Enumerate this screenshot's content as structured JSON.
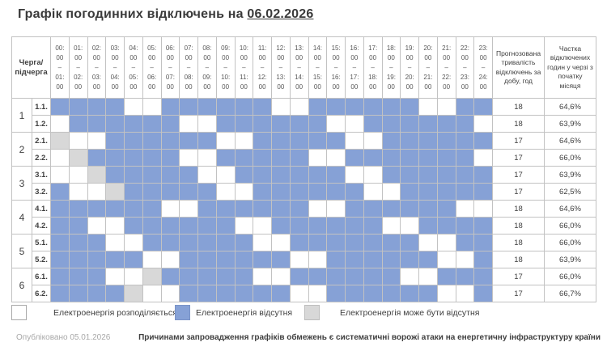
{
  "title": {
    "prefix": "Графік погодинних відключень на ",
    "date": "06.02.2026"
  },
  "colors": {
    "distributed": "#ffffff",
    "absent": "#86a1d6",
    "maybe_absent": "#d8d8d8"
  },
  "table": {
    "corner_label": "Черга/\nпідчерга",
    "predicted_header": "Прогнозована тривалість відключень за добу, год",
    "share_header": "Частка відключених годин у черзі з початку місяця",
    "hours": [
      {
        "f": "00:00",
        "t": "01:00"
      },
      {
        "f": "01:00",
        "t": "02:00"
      },
      {
        "f": "02:00",
        "t": "03:00"
      },
      {
        "f": "03:00",
        "t": "04:00"
      },
      {
        "f": "04:00",
        "t": "05:00"
      },
      {
        "f": "05:00",
        "t": "06:00"
      },
      {
        "f": "06:00",
        "t": "07:00"
      },
      {
        "f": "07:00",
        "t": "08:00"
      },
      {
        "f": "08:00",
        "t": "09:00"
      },
      {
        "f": "09:00",
        "t": "10:00"
      },
      {
        "f": "10:00",
        "t": "11:00"
      },
      {
        "f": "11:00",
        "t": "12:00"
      },
      {
        "f": "12:00",
        "t": "13:00"
      },
      {
        "f": "13:00",
        "t": "14:00"
      },
      {
        "f": "14:00",
        "t": "15:00"
      },
      {
        "f": "15:00",
        "t": "16:00"
      },
      {
        "f": "16:00",
        "t": "17:00"
      },
      {
        "f": "17:00",
        "t": "18:00"
      },
      {
        "f": "18:00",
        "t": "19:00"
      },
      {
        "f": "19:00",
        "t": "20:00"
      },
      {
        "f": "20:00",
        "t": "21:00"
      },
      {
        "f": "21:00",
        "t": "22:00"
      },
      {
        "f": "22:00",
        "t": "23:00"
      },
      {
        "f": "23:00",
        "t": "24:00"
      }
    ],
    "state_legend": {
      "0": "електроенергія розподіляється",
      "1": "електроенергія відсутня",
      "2": "електроенергія може бути відсутня"
    },
    "groups": [
      {
        "queue": "1",
        "rows": [
          {
            "label": "1.1.",
            "cells": [
              1,
              1,
              1,
              1,
              0,
              0,
              1,
              1,
              1,
              1,
              1,
              1,
              0,
              0,
              1,
              1,
              1,
              1,
              1,
              1,
              0,
              0,
              1,
              1
            ],
            "predicted": "18",
            "share": "64,6%"
          },
          {
            "label": "1.2.",
            "cells": [
              0,
              1,
              1,
              1,
              1,
              1,
              1,
              0,
              0,
              1,
              1,
              1,
              1,
              1,
              1,
              0,
              0,
              1,
              1,
              1,
              1,
              1,
              1,
              0
            ],
            "predicted": "18",
            "share": "63,9%"
          }
        ]
      },
      {
        "queue": "2",
        "rows": [
          {
            "label": "2.1.",
            "cells": [
              2,
              0,
              0,
              1,
              1,
              1,
              1,
              1,
              1,
              0,
              0,
              1,
              1,
              1,
              1,
              1,
              0,
              0,
              1,
              1,
              1,
              1,
              1,
              1
            ],
            "predicted": "17",
            "share": "64,6%"
          },
          {
            "label": "2.2.",
            "cells": [
              0,
              2,
              1,
              1,
              1,
              1,
              1,
              0,
              0,
              1,
              1,
              1,
              1,
              1,
              0,
              0,
              1,
              1,
              1,
              1,
              1,
              1,
              1,
              0
            ],
            "predicted": "17",
            "share": "66,0%"
          }
        ]
      },
      {
        "queue": "3",
        "rows": [
          {
            "label": "3.1.",
            "cells": [
              0,
              0,
              2,
              1,
              1,
              1,
              1,
              1,
              0,
              0,
              1,
              1,
              1,
              1,
              1,
              1,
              0,
              0,
              1,
              1,
              1,
              1,
              1,
              1
            ],
            "predicted": "17",
            "share": "63,9%"
          },
          {
            "label": "3.2.",
            "cells": [
              1,
              0,
              0,
              2,
              1,
              1,
              1,
              1,
              1,
              0,
              0,
              1,
              1,
              1,
              1,
              1,
              1,
              0,
              0,
              1,
              1,
              1,
              1,
              1
            ],
            "predicted": "17",
            "share": "62,5%"
          }
        ]
      },
      {
        "queue": "4",
        "rows": [
          {
            "label": "4.1.",
            "cells": [
              1,
              1,
              1,
              1,
              1,
              1,
              0,
              0,
              1,
              1,
              1,
              1,
              1,
              1,
              0,
              0,
              1,
              1,
              1,
              1,
              1,
              1,
              0,
              0
            ],
            "predicted": "18",
            "share": "64,6%"
          },
          {
            "label": "4.2.",
            "cells": [
              1,
              1,
              0,
              0,
              1,
              1,
              1,
              1,
              1,
              1,
              0,
              0,
              1,
              1,
              1,
              1,
              1,
              1,
              0,
              0,
              1,
              1,
              1,
              1
            ],
            "predicted": "18",
            "share": "66,0%"
          }
        ]
      },
      {
        "queue": "5",
        "rows": [
          {
            "label": "5.1.",
            "cells": [
              1,
              1,
              1,
              0,
              0,
              1,
              1,
              1,
              1,
              1,
              1,
              0,
              0,
              1,
              1,
              1,
              1,
              1,
              1,
              1,
              0,
              0,
              1,
              1
            ],
            "predicted": "18",
            "share": "66,0%"
          },
          {
            "label": "5.2.",
            "cells": [
              1,
              1,
              1,
              1,
              1,
              0,
              0,
              1,
              1,
              1,
              1,
              1,
              1,
              0,
              0,
              1,
              1,
              1,
              1,
              1,
              1,
              0,
              0,
              1
            ],
            "predicted": "18",
            "share": "63,9%"
          }
        ]
      },
      {
        "queue": "6",
        "rows": [
          {
            "label": "6.1.",
            "cells": [
              1,
              1,
              1,
              0,
              0,
              2,
              1,
              1,
              1,
              1,
              1,
              0,
              0,
              1,
              1,
              1,
              1,
              1,
              1,
              0,
              0,
              1,
              1,
              1
            ],
            "predicted": "17",
            "share": "66,0%"
          },
          {
            "label": "6.2.",
            "cells": [
              1,
              1,
              1,
              1,
              2,
              0,
              0,
              1,
              1,
              1,
              1,
              1,
              1,
              0,
              0,
              1,
              1,
              1,
              1,
              1,
              1,
              0,
              0,
              1
            ],
            "predicted": "17",
            "share": "66,7%"
          }
        ]
      }
    ]
  },
  "legend": {
    "items": [
      {
        "state": 0,
        "label": "Електроенергія розподіляється"
      },
      {
        "state": 1,
        "label": "Електроенергія відсутня"
      },
      {
        "state": 2,
        "label": "Електроенергія може бути відсутня"
      }
    ]
  },
  "footer": {
    "published": "Опубліковано 05.01.2026",
    "reason": "Причинами запровадження графіків обмежень є систематичні ворожі атаки на енергетичну інфраструктуру країни"
  }
}
